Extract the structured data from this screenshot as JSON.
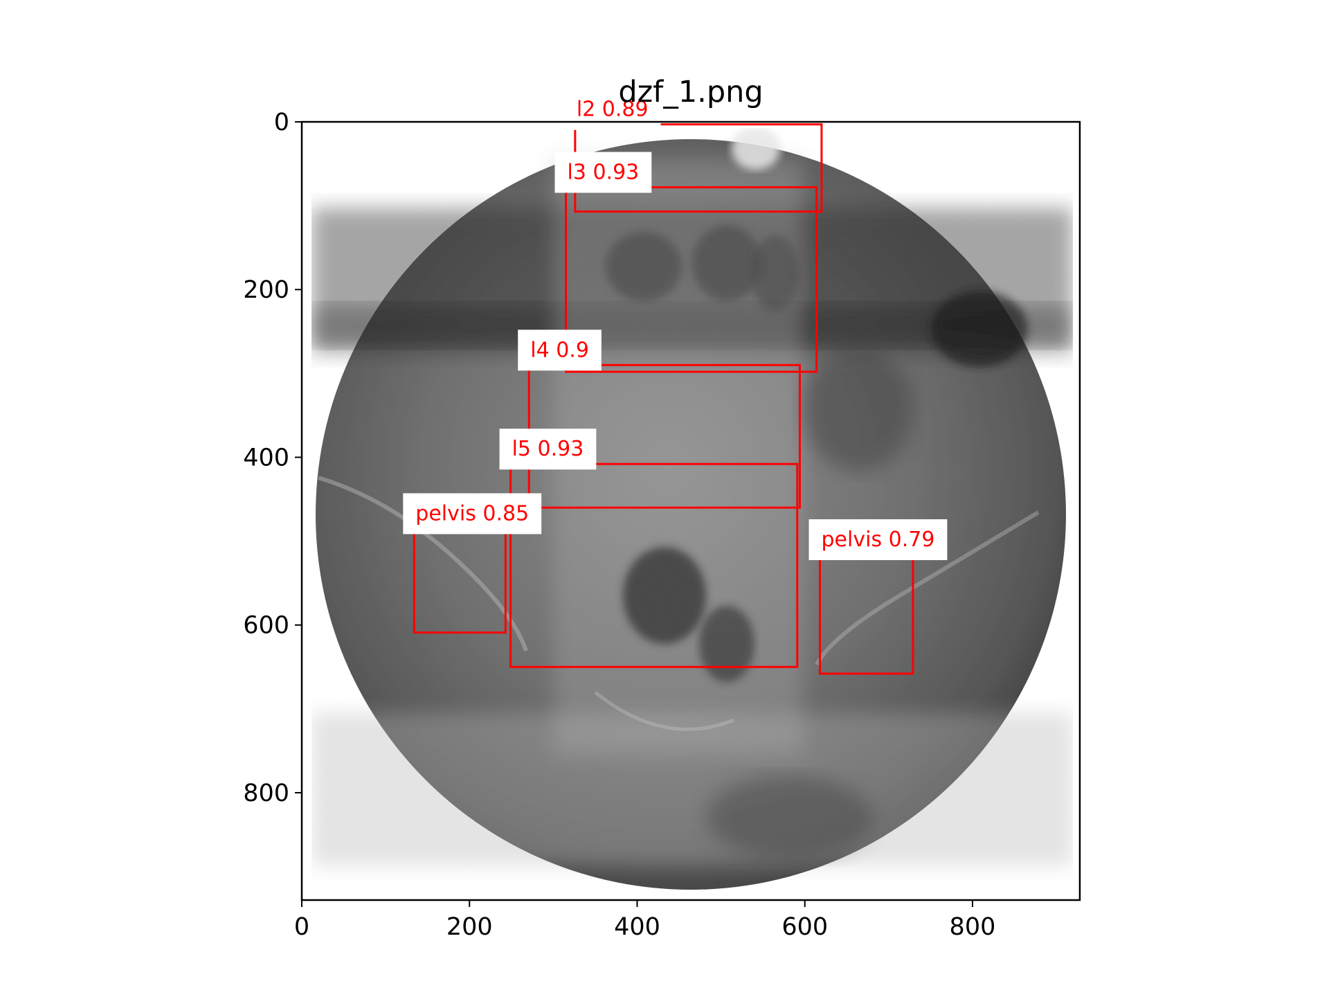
{
  "figure": {
    "title": "dzf_1.png",
    "image_extent": {
      "width": 928,
      "height": 928
    },
    "axes": {
      "x_ticks": [
        0,
        200,
        400,
        600,
        800
      ],
      "y_ticks": [
        0,
        200,
        400,
        600,
        800
      ],
      "xlim": [
        0,
        928
      ],
      "ylim": [
        928,
        0
      ]
    },
    "image": {
      "description_icon": "xray-radiograph-circular",
      "background": "#ffffff"
    },
    "box_color": "#ff0000",
    "detections": [
      {
        "label": "l2  0.89",
        "cls": "l2",
        "score": 0.89,
        "x0": 326,
        "y0": 3,
        "x1": 620,
        "y1": 107
      },
      {
        "label": "l3  0.93",
        "cls": "l3",
        "score": 0.93,
        "x0": 315,
        "y0": 78,
        "x1": 614,
        "y1": 298
      },
      {
        "label": "l4  0.9",
        "cls": "l4",
        "score": 0.9,
        "x0": 271,
        "y0": 290,
        "x1": 594,
        "y1": 460
      },
      {
        "label": "l5  0.93",
        "cls": "l5",
        "score": 0.93,
        "x0": 249,
        "y0": 408,
        "x1": 591,
        "y1": 650
      },
      {
        "label": "pelvis 0.85",
        "cls": "pelvis",
        "score": 0.85,
        "x0": 134,
        "y0": 485,
        "x1": 243,
        "y1": 609
      },
      {
        "label": "pelvis 0.79",
        "cls": "pelvis",
        "score": 0.79,
        "x0": 618,
        "y0": 516,
        "x1": 729,
        "y1": 658
      }
    ]
  }
}
